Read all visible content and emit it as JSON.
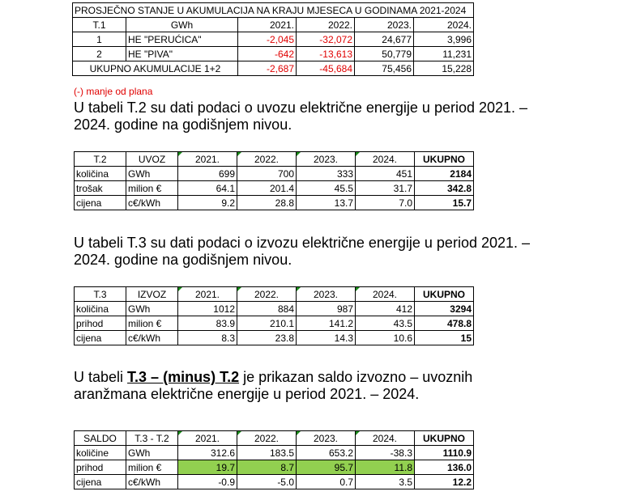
{
  "table1": {
    "title": "PROSJEČNO STANJE U AKUMULACIJA NA KRAJU MJESECA U GODINAMA 2021-2024",
    "header": [
      "T.1",
      "GWh",
      "2021.",
      "2022.",
      "2023.",
      "2024."
    ],
    "rows": [
      {
        "no": "1",
        "name": "HE \"PERUĆICA\"",
        "values": [
          "-2,045",
          "-32,072",
          "24,677",
          "3,996"
        ]
      },
      {
        "no": "2",
        "name": "HE \"PIVA\"",
        "values": [
          "-642",
          "-13,613",
          "50,779",
          "11,231"
        ]
      }
    ],
    "total": {
      "label": "UKUPNO AKUMULACIJE 1+2",
      "values": [
        "-2,687",
        "-45,684",
        "75,456",
        "15,228"
      ]
    },
    "note": "(-) manje od plana"
  },
  "para1": "U tabeli T.2 su dati podaci o uvozu električne energije u period 2021. – 2024. godine na godišnjem nivou.",
  "table2": {
    "header": [
      "T.2",
      "UVOZ",
      "2021.",
      "2022.",
      "2023.",
      "2024.",
      "UKUPNO"
    ],
    "rows": [
      {
        "label": "količina",
        "unit": "GWh",
        "values": [
          "699",
          "700",
          "333",
          "451"
        ],
        "total": "2184"
      },
      {
        "label": "trošak",
        "unit": "milion €",
        "values": [
          "64.1",
          "201.4",
          "45.5",
          "31.7"
        ],
        "total": "342.8"
      },
      {
        "label": "cijena",
        "unit": "c€/kWh",
        "values": [
          "9.2",
          "28.8",
          "13.7",
          "7.0"
        ],
        "total": "15.7"
      }
    ]
  },
  "para2": "U tabeli T.3 su dati podaci o izvozu električne energije u period 2021. – 2024. godine na godišnjem nivou.",
  "table3": {
    "header": [
      "T.3",
      "IZVOZ",
      "2021.",
      "2022.",
      "2023.",
      "2024.",
      "UKUPNO"
    ],
    "rows": [
      {
        "label": "količina",
        "unit": "GWh",
        "values": [
          "1012",
          "884",
          "987",
          "412"
        ],
        "total": "3294"
      },
      {
        "label": "prihod",
        "unit": "milion €",
        "values": [
          "83.9",
          "210.1",
          "141.2",
          "43.5"
        ],
        "total": "478.8"
      },
      {
        "label": "cijena",
        "unit": "c€/kWh",
        "values": [
          "8.3",
          "23.8",
          "14.3",
          "10.6"
        ],
        "total": "15"
      }
    ]
  },
  "para3": {
    "prefix": "U tabeli ",
    "highlight": "T.3 – (minus) T.2",
    "suffix": " je prikazan saldo izvozno – uvoznih aranžmana električne energije u period 2021. – 2024."
  },
  "table4": {
    "header": [
      "SALDO",
      "T.3 - T.2",
      "2021.",
      "2022.",
      "2023.",
      "2024.",
      "UKUPNO"
    ],
    "rows": [
      {
        "label": "količine",
        "unit": "GWh",
        "values": [
          "312.6",
          "183.5",
          "653.2",
          "-38.3"
        ],
        "total": "1110.9"
      },
      {
        "label": "prihod",
        "unit": "milion €",
        "values": [
          "19.7",
          "8.7",
          "95.7",
          "11.8"
        ],
        "total": "136.0"
      },
      {
        "label": "cijena",
        "unit": "c€/kWh",
        "values": [
          "-0.9",
          "-5.0",
          "0.7",
          "3.5"
        ],
        "total": "12.2"
      }
    ],
    "highlight_color": "#92d050"
  }
}
